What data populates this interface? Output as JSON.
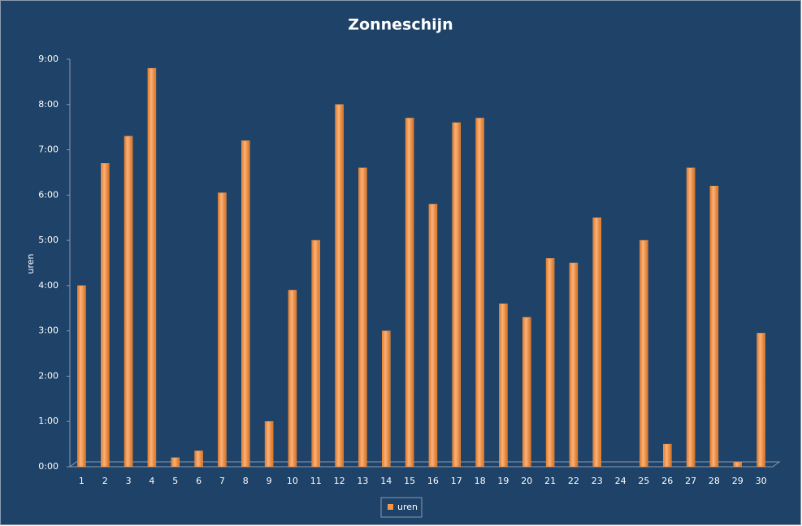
{
  "chart_data": {
    "type": "bar",
    "title": "Zonneschijn",
    "y_label": "uren",
    "categories": [
      "1",
      "2",
      "3",
      "4",
      "5",
      "6",
      "7",
      "8",
      "9",
      "10",
      "11",
      "12",
      "13",
      "14",
      "15",
      "16",
      "17",
      "18",
      "19",
      "20",
      "21",
      "22",
      "23",
      "24",
      "25",
      "26",
      "27",
      "28",
      "29",
      "30"
    ],
    "series": [
      {
        "name": "uren",
        "color": "#f79646",
        "values": [
          4.0,
          6.7,
          7.3,
          8.8,
          0.2,
          0.35,
          6.05,
          7.2,
          1.0,
          3.9,
          5.0,
          8.0,
          6.6,
          3.0,
          7.7,
          5.8,
          7.6,
          7.7,
          3.6,
          3.3,
          4.6,
          4.5,
          5.5,
          0,
          5.0,
          0.5,
          6.6,
          6.2,
          0.1,
          2.95
        ]
      }
    ],
    "ylim": [
      0,
      9
    ],
    "yticks": [
      {
        "value": 0,
        "label": "0:00"
      },
      {
        "value": 1,
        "label": "1:00"
      },
      {
        "value": 2,
        "label": "2:00"
      },
      {
        "value": 3,
        "label": "3:00"
      },
      {
        "value": 4,
        "label": "4:00"
      },
      {
        "value": 5,
        "label": "5:00"
      },
      {
        "value": 6,
        "label": "6:00"
      },
      {
        "value": 7,
        "label": "7:00"
      },
      {
        "value": 8,
        "label": "8:00"
      },
      {
        "value": 9,
        "label": "9:00"
      }
    ],
    "legend": "bottom"
  }
}
